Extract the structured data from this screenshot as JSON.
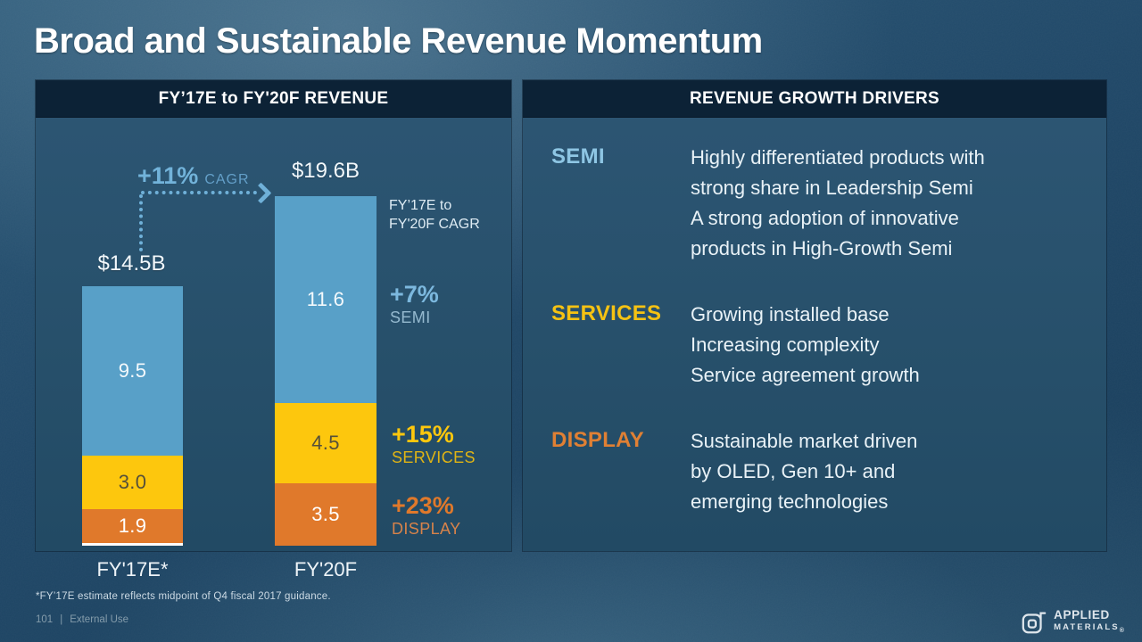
{
  "title": "Broad and Sustainable Revenue Momentum",
  "left_panel": {
    "header": "FY’17E to FY'20F REVENUE",
    "cagr_caption_line1": "FY’17E to",
    "cagr_caption_line2": "FY'20F CAGR"
  },
  "right_panel": {
    "header": "REVENUE GROWTH DRIVERS",
    "rows": [
      {
        "label": "SEMI",
        "color": "#8ec6e4",
        "lines": [
          "Highly differentiated products with",
          "strong share in Leadership Semi",
          "A strong adoption of innovative",
          "products in High-Growth Semi"
        ]
      },
      {
        "label": "SERVICES",
        "color": "#f5c213",
        "lines": [
          "Growing installed base",
          "Increasing complexity",
          "Service agreement growth"
        ]
      },
      {
        "label": "DISPLAY",
        "color": "#e08034",
        "lines": [
          "Sustainable market driven",
          "by OLED, Gen 10+ and",
          "emerging technologies"
        ]
      }
    ]
  },
  "chart_data": {
    "type": "bar",
    "stacked": true,
    "categories": [
      "FY'17E*",
      "FY'20F"
    ],
    "series": [
      {
        "name": "SEMI",
        "color": "#58a0c8",
        "label_color": "#f4f9fc",
        "values": [
          9.5,
          11.6
        ],
        "value_labels": [
          "9.5",
          "11.6"
        ]
      },
      {
        "name": "SERVICES",
        "color": "#fdc70d",
        "label_color": "#55503a",
        "values": [
          3.0,
          4.5
        ],
        "value_labels": [
          "3.0",
          "4.5"
        ]
      },
      {
        "name": "DISPLAY",
        "color": "#e0792b",
        "label_color": "#ffffff",
        "values": [
          1.9,
          3.5
        ],
        "value_labels": [
          "1.9",
          "3.5"
        ]
      }
    ],
    "totals": [
      "$14.5B",
      "$19.6B"
    ],
    "overall_cagr": {
      "pct": "+11%",
      "suffix": "CAGR"
    },
    "cagr_annotations": [
      {
        "pct": "+7%",
        "name": "SEMI",
        "color": "#7cb8de"
      },
      {
        "pct": "+15%",
        "name": "SERVICES",
        "color": "#fdc70d"
      },
      {
        "pct": "+23%",
        "name": "DISPLAY",
        "color": "#e0792b"
      }
    ],
    "title": "FY’17E to FY'20F REVENUE",
    "xlabel": "",
    "ylabel": "",
    "ylim": [
      0,
      19.6
    ],
    "grid": false,
    "legend_position": "none",
    "units": "USD billions"
  },
  "footer": {
    "footnote": "*FY’17E estimate reflects midpoint of Q4 fiscal 2017 guidance.",
    "page": "101",
    "separator": "|",
    "classification": "External Use"
  },
  "logo": {
    "line1": "APPLIED",
    "line2": "MATERIALS",
    "reg": "®"
  }
}
